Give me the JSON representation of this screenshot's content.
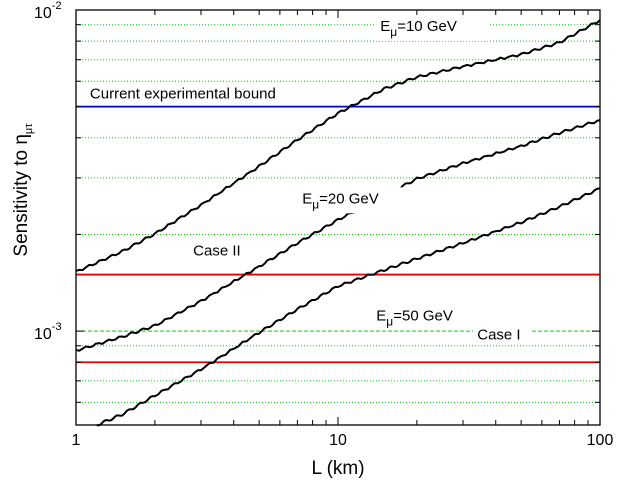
{
  "chart_data": {
    "type": "line",
    "xlabel": "L (km)",
    "ylabel": "Sensitivity to η",
    "ylabel_subscript": "μτ",
    "xscale": "log",
    "yscale": "log",
    "xlim": [
      1,
      100
    ],
    "ylim": [
      0.00051,
      0.01
    ],
    "x_ticks": [
      {
        "value": 1,
        "label": "1"
      },
      {
        "value": 10,
        "label": "10"
      },
      {
        "value": 100,
        "label": "100"
      }
    ],
    "y_ticks": [
      {
        "value": 0.001,
        "base": "10",
        "exp": "-3"
      },
      {
        "value": 0.01,
        "base": "10",
        "exp": "-2"
      }
    ],
    "grid": {
      "y_minor": true,
      "color": "#00cc00",
      "style": "dotted"
    },
    "series": [
      {
        "name": "Eμ=10 GeV",
        "color": "#000000",
        "x": [
          1,
          1.5,
          2,
          3,
          5,
          7,
          10,
          15,
          20,
          30,
          50,
          70,
          100
        ],
        "y": [
          0.00153,
          0.00177,
          0.00201,
          0.00247,
          0.00326,
          0.00394,
          0.00477,
          0.00568,
          0.00618,
          0.00667,
          0.00727,
          0.00792,
          0.0093
        ]
      },
      {
        "name": "Eμ=20 GeV",
        "color": "#000000",
        "x": [
          1,
          1.5,
          2,
          3,
          5,
          7,
          10,
          15,
          20,
          30,
          50,
          70,
          100
        ],
        "y": [
          0.00087,
          0.00096,
          0.00104,
          0.00124,
          0.00159,
          0.00188,
          0.00222,
          0.00264,
          0.00298,
          0.00333,
          0.00377,
          0.00414,
          0.00454
        ]
      },
      {
        "name": "Eμ=50 GeV",
        "color": "#000000",
        "x": [
          1.2,
          1.5,
          2,
          3,
          5,
          7,
          10,
          15,
          20,
          30,
          50,
          70,
          100
        ],
        "y": [
          0.00051,
          0.00055,
          0.00063,
          0.00076,
          0.00099,
          0.00117,
          0.00138,
          0.00155,
          0.00168,
          0.00188,
          0.00218,
          0.00244,
          0.00278
        ]
      }
    ],
    "hlines": [
      {
        "name": "Current experimental bound",
        "y": 0.005,
        "color": "#0000cc"
      },
      {
        "name": "Case II",
        "y": 0.0015,
        "color": "#ee0000"
      },
      {
        "name": "Case I",
        "y": 0.0008,
        "color": "#ee0000"
      }
    ],
    "annotations": [
      {
        "base": "E",
        "sub": "μ",
        "rest": "=10 GeV",
        "x": 14.5,
        "y": 0.0086
      },
      {
        "base": "E",
        "sub": "μ",
        "rest": "=20 GeV",
        "x": 7.3,
        "y": 0.0025
      },
      {
        "base": "E",
        "sub": "μ",
        "rest": "=50 GeV",
        "x": 14,
        "y": 0.00108
      },
      {
        "text": "Current experimental bound",
        "x": 1.13,
        "y": 0.0053
      },
      {
        "text": "Case II",
        "x": 2.8,
        "y": 0.00172
      },
      {
        "text": "Case I",
        "x": 34,
        "y": 0.00094
      }
    ]
  }
}
